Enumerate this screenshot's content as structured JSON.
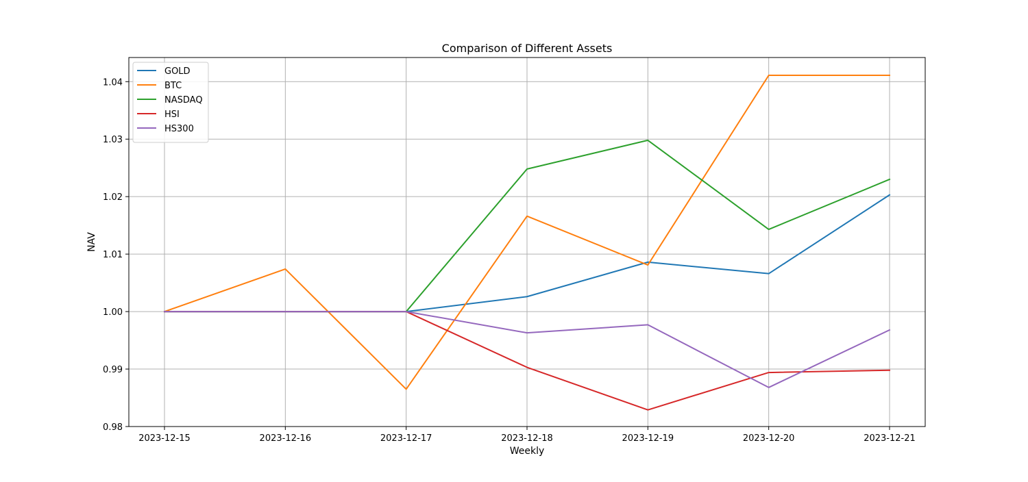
{
  "chart_data": {
    "type": "line",
    "title": "Comparison of Different Assets",
    "xlabel": "Weekly",
    "ylabel": "NAV",
    "x": [
      "2023-12-15",
      "2023-12-16",
      "2023-12-17",
      "2023-12-18",
      "2023-12-19",
      "2023-12-20",
      "2023-12-21"
    ],
    "y_ticks": [
      "0.98",
      "0.99",
      "1.00",
      "1.01",
      "1.02",
      "1.03",
      "1.04"
    ],
    "ylim": [
      0.98,
      1.0442
    ],
    "grid": true,
    "legend_position": "upper-left",
    "series": [
      {
        "name": "GOLD",
        "color": "#1f77b4",
        "values": [
          1.0,
          1.0,
          1.0,
          1.0026,
          1.0086,
          1.0066,
          1.0203
        ]
      },
      {
        "name": "BTC",
        "color": "#ff7f0e",
        "values": [
          1.0,
          1.0074,
          0.9865,
          1.0166,
          1.0081,
          1.0411,
          1.0411
        ]
      },
      {
        "name": "NASDAQ",
        "color": "#2ca02c",
        "values": [
          1.0,
          1.0,
          1.0,
          1.0248,
          1.0298,
          1.0143,
          1.023
        ]
      },
      {
        "name": "HSI",
        "color": "#d62728",
        "values": [
          1.0,
          1.0,
          1.0,
          0.9903,
          0.9829,
          0.9894,
          0.9898
        ]
      },
      {
        "name": "HS300",
        "color": "#9467bd",
        "values": [
          1.0,
          1.0,
          1.0,
          0.9963,
          0.9977,
          0.9868,
          0.9968
        ]
      }
    ]
  }
}
